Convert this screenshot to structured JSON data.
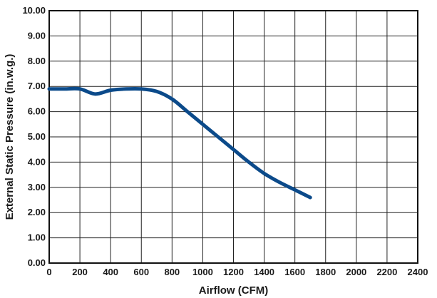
{
  "chart_data": {
    "type": "line",
    "title": "",
    "xlabel": "Airflow (CFM)",
    "ylabel": "External Static Pressure (in.w.g.)",
    "xlim": [
      0,
      2400
    ],
    "ylim": [
      0,
      10
    ],
    "x_ticks": [
      "0",
      "200",
      "400",
      "600",
      "800",
      "1000",
      "1200",
      "1400",
      "1600",
      "1800",
      "2000",
      "2200",
      "2400"
    ],
    "y_ticks": [
      "0.00",
      "1.00",
      "2.00",
      "3.00",
      "4.00",
      "5.00",
      "6.00",
      "7.00",
      "8.00",
      "9.00",
      "10.00"
    ],
    "grid": true,
    "line_color": "#0b4a8a",
    "series": [
      {
        "x": [
          0,
          100,
          200,
          300,
          400,
          500,
          600,
          700,
          800,
          900,
          1000,
          1100,
          1200,
          1300,
          1400,
          1500,
          1600,
          1700
        ],
        "values": [
          6.9,
          6.9,
          6.9,
          6.7,
          6.85,
          6.9,
          6.9,
          6.8,
          6.5,
          6.0,
          5.5,
          5.0,
          4.5,
          4.0,
          3.55,
          3.2,
          2.9,
          2.6
        ]
      }
    ]
  }
}
